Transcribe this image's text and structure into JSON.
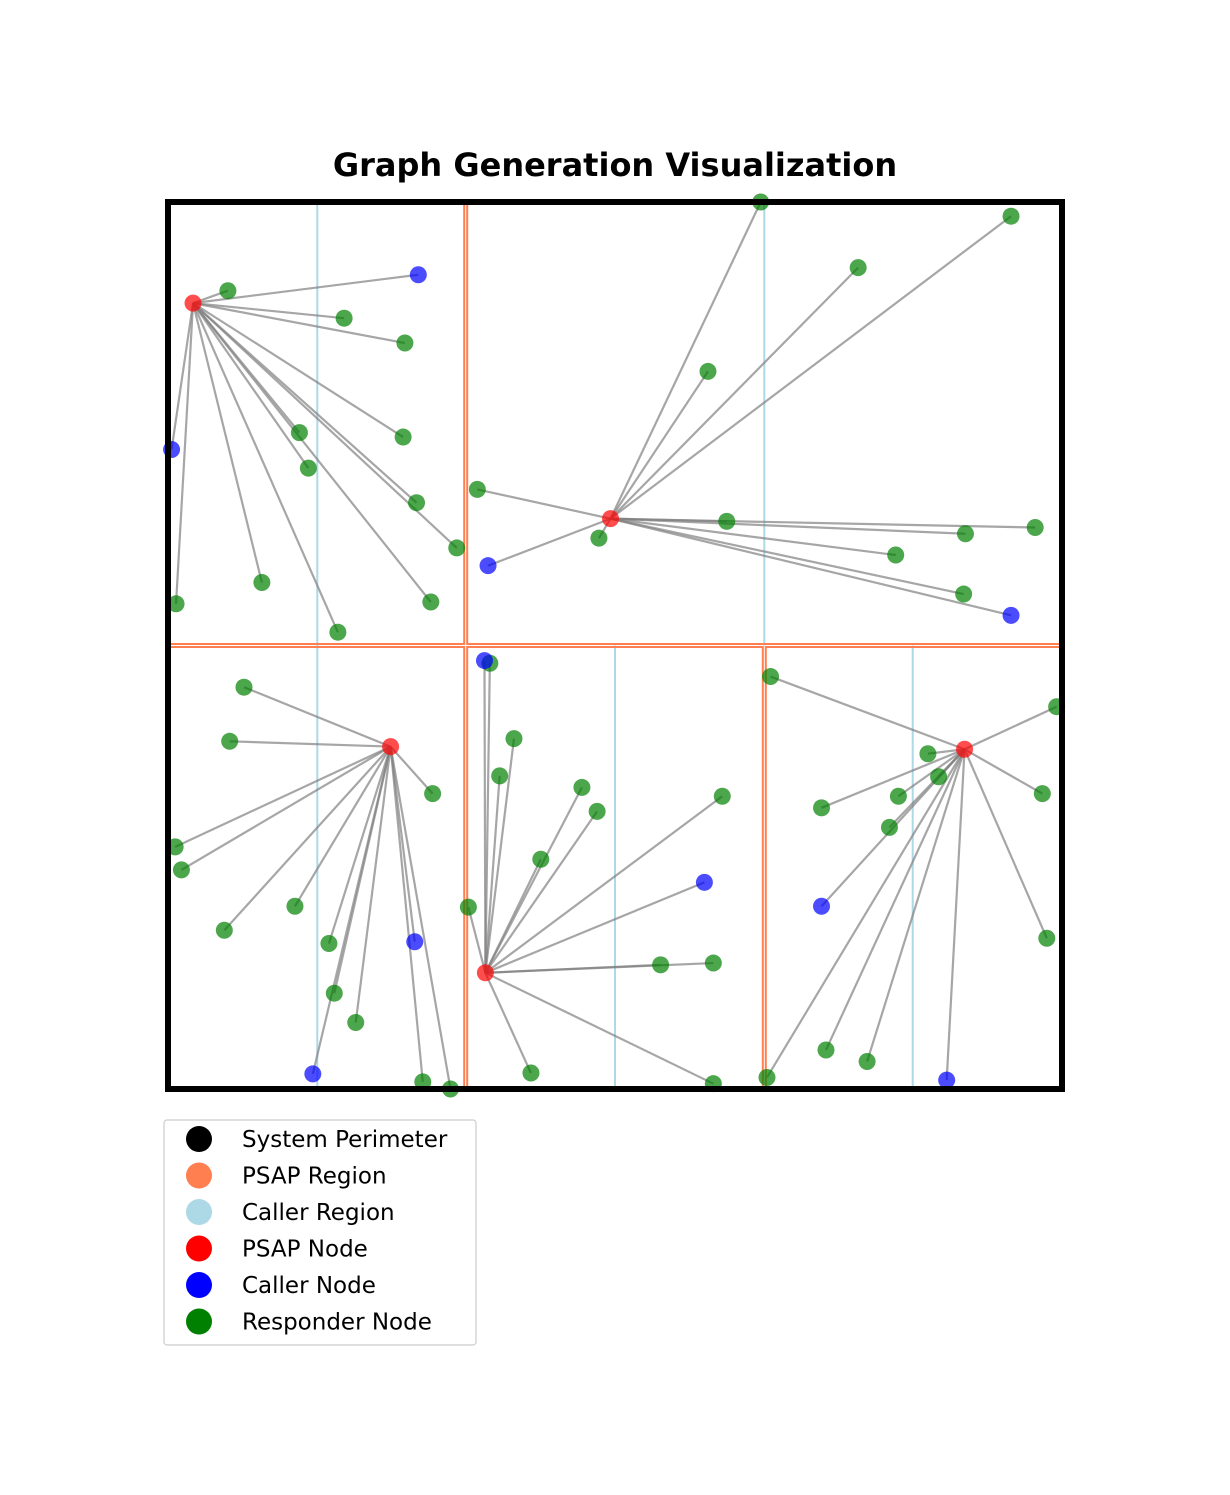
{
  "chart_data": {
    "type": "scatter",
    "title": "Graph Generation Visualization",
    "xlim": [
      0,
      100
    ],
    "ylim": [
      0,
      100
    ],
    "grid": false,
    "legend_placement": "below-left",
    "colors": {
      "perimeter": "#000000",
      "psap_region": "#ff7f50",
      "caller_region": "#add8e6",
      "psap_node": "#ff0000",
      "caller_node": "#0000ff",
      "responder_node": "#008000",
      "edge": "#808080"
    },
    "legend": [
      {
        "label": "System Perimeter",
        "color": "#000000"
      },
      {
        "label": "PSAP Region",
        "color": "#ff7f50"
      },
      {
        "label": "Caller Region",
        "color": "#add8e6"
      },
      {
        "label": "PSAP Node",
        "color": "#ff0000"
      },
      {
        "label": "Caller Node",
        "color": "#0000ff"
      },
      {
        "label": "Responder Node",
        "color": "#008000"
      }
    ],
    "perimeter": [
      0,
      0,
      100,
      100
    ],
    "psap_regions": [
      [
        0,
        50,
        33.3,
        100
      ],
      [
        33.3,
        50,
        100,
        100
      ],
      [
        0,
        0,
        33.3,
        50
      ],
      [
        33.3,
        0,
        66.7,
        50
      ],
      [
        66.7,
        0,
        100,
        50
      ]
    ],
    "caller_region_lines_x": [
      {
        "x": 16.7,
        "y": [
          0,
          100
        ]
      },
      {
        "x": 66.7,
        "y": [
          50,
          100
        ]
      },
      {
        "x": 50,
        "y": [
          0,
          50
        ]
      },
      {
        "x": 83.3,
        "y": [
          0,
          50
        ]
      }
    ],
    "clusters": [
      {
        "psap": [
          2.8,
          88.6
        ],
        "callers": [
          [
            28,
            91.8
          ],
          [
            0.4,
            72.1
          ]
        ],
        "responders": [
          [
            6.7,
            90.0
          ],
          [
            19.7,
            86.9
          ],
          [
            26.5,
            84.1
          ],
          [
            14.7,
            74.0
          ],
          [
            26.3,
            73.5
          ],
          [
            15.7,
            70.0
          ],
          [
            27.8,
            66.1
          ],
          [
            32.3,
            61.0
          ],
          [
            10.5,
            57.1
          ],
          [
            29.4,
            54.9
          ],
          [
            0.9,
            54.7
          ],
          [
            19.0,
            51.5
          ]
        ]
      },
      {
        "psap": [
          49.5,
          64.3
        ],
        "callers": [
          [
            35.8,
            59.0
          ],
          [
            94.3,
            53.4
          ]
        ],
        "responders": [
          [
            66.3,
            100.0
          ],
          [
            94.3,
            98.4
          ],
          [
            77.2,
            92.6
          ],
          [
            60.4,
            80.9
          ],
          [
            34.6,
            67.6
          ],
          [
            62.5,
            64.0
          ],
          [
            48.2,
            62.1
          ],
          [
            97.0,
            63.3
          ],
          [
            89.2,
            62.6
          ],
          [
            81.4,
            60.2
          ],
          [
            89.0,
            55.8
          ]
        ]
      },
      {
        "psap": [
          24.9,
          38.6
        ],
        "callers": [
          [
            27.6,
            16.6
          ],
          [
            16.2,
            1.7
          ]
        ],
        "responders": [
          [
            8.5,
            45.3
          ],
          [
            6.9,
            39.2
          ],
          [
            29.6,
            33.3
          ],
          [
            0.8,
            27.3
          ],
          [
            1.5,
            24.7
          ],
          [
            14.2,
            20.6
          ],
          [
            6.3,
            17.9
          ],
          [
            18.0,
            16.4
          ],
          [
            18.6,
            10.8
          ],
          [
            21.0,
            7.5
          ],
          [
            28.5,
            0.8
          ],
          [
            31.6,
            0.0
          ]
        ]
      },
      {
        "psap": [
          35.5,
          13.1
        ],
        "callers": [
          [
            35.4,
            48.3
          ],
          [
            60.0,
            23.3
          ]
        ],
        "responders": [
          [
            36.0,
            48.0
          ],
          [
            38.7,
            39.5
          ],
          [
            37.1,
            35.3
          ],
          [
            46.3,
            34.0
          ],
          [
            48.0,
            31.3
          ],
          [
            62.0,
            33.0
          ],
          [
            41.7,
            25.9
          ],
          [
            33.6,
            20.5
          ],
          [
            55.1,
            14.0
          ],
          [
            61.0,
            14.2
          ],
          [
            40.6,
            1.8
          ],
          [
            61.0,
            0.6
          ]
        ]
      },
      {
        "psap": [
          89.1,
          38.3
        ],
        "callers": [
          [
            73.1,
            20.6
          ],
          [
            87.1,
            1.0
          ]
        ],
        "responders": [
          [
            67.4,
            46.5
          ],
          [
            99.4,
            43.1
          ],
          [
            85.0,
            37.8
          ],
          [
            86.2,
            35.2
          ],
          [
            97.8,
            33.3
          ],
          [
            81.7,
            33.0
          ],
          [
            73.1,
            31.7
          ],
          [
            80.7,
            29.5
          ],
          [
            98.3,
            17.0
          ],
          [
            73.6,
            4.4
          ],
          [
            78.2,
            3.1
          ],
          [
            67.0,
            1.3
          ]
        ]
      }
    ]
  }
}
